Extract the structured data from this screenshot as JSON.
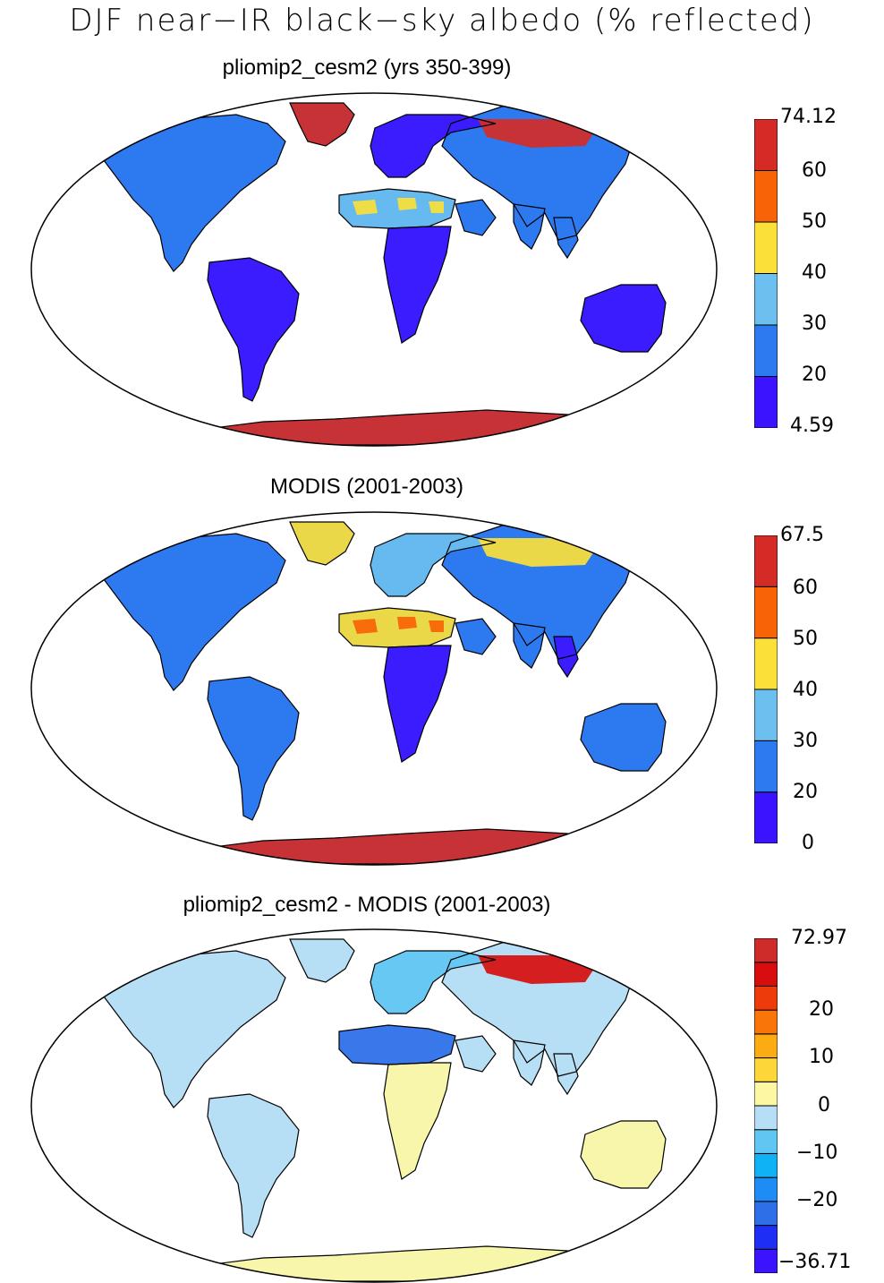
{
  "title": "DJF near−IR black−sky albedo (% reflected)",
  "panels": [
    {
      "title": "pliomip2_cesm2 (yrs 350-399)",
      "colorbar": {
        "colors": [
          "#3c13ff",
          "#2d7af0",
          "#6dbff0",
          "#fbe03a",
          "#f96308",
          "#d52b27"
        ],
        "tick_labels": [
          "4.59",
          "20",
          "30",
          "40",
          "50",
          "60",
          "74.12"
        ]
      },
      "base_color": "#2d7af0",
      "accents": [
        {
          "color": "#3c13ff",
          "region": "south-america"
        },
        {
          "color": "#3c13ff",
          "region": "africa-south"
        },
        {
          "color": "#3c13ff",
          "region": "australia"
        },
        {
          "color": "#3c13ff",
          "region": "europe"
        },
        {
          "color": "#6dbff0",
          "region": "sahara"
        },
        {
          "color": "#fbe03a",
          "region": "sahara-spots"
        },
        {
          "color": "#d52b27",
          "region": "siberia"
        },
        {
          "color": "#d52b27",
          "region": "greenland"
        },
        {
          "color": "#d52b27",
          "region": "antarctica"
        }
      ]
    },
    {
      "title": "MODIS (2001-2003)",
      "colorbar": {
        "colors": [
          "#3c13ff",
          "#2d7af0",
          "#6dbff0",
          "#fbe03a",
          "#f96308",
          "#d52b27"
        ],
        "tick_labels": [
          "0",
          "20",
          "30",
          "40",
          "50",
          "60",
          "67.5"
        ]
      },
      "base_color": "#2d7af0",
      "accents": [
        {
          "color": "#6dbff0",
          "region": "europe"
        },
        {
          "color": "#fbe03a",
          "region": "sahara"
        },
        {
          "color": "#f96308",
          "region": "sahara-spots"
        },
        {
          "color": "#fbe03a",
          "region": "siberia"
        },
        {
          "color": "#3c13ff",
          "region": "africa-south"
        },
        {
          "color": "#3c13ff",
          "region": "se-asia"
        },
        {
          "color": "#fbe03a",
          "region": "greenland"
        },
        {
          "color": "#d52b27",
          "region": "antarctica"
        }
      ]
    },
    {
      "title": "pliomip2_cesm2 - MODIS (2001-2003)",
      "colorbar": {
        "colors": [
          "#3c13ff",
          "#1f2ef5",
          "#2e6fe8",
          "#1e8cf5",
          "#10b2f6",
          "#61c6f2",
          "#b6def4",
          "#fdf7a3",
          "#fdd73a",
          "#fbac12",
          "#f97508",
          "#ee3b0b",
          "#d80d0d",
          "#ce2b2b"
        ],
        "tick_labels": [
          "−36.71",
          "−20",
          "−10",
          "0",
          "10",
          "20",
          "72.97"
        ]
      },
      "base_color": "#b6def4",
      "accents": [
        {
          "color": "#61c6f2",
          "region": "europe"
        },
        {
          "color": "#2e6fe8",
          "region": "sahara"
        },
        {
          "color": "#fdf7a3",
          "region": "africa-south"
        },
        {
          "color": "#fdf7a3",
          "region": "australia"
        },
        {
          "color": "#d80d0d",
          "region": "siberia"
        },
        {
          "color": "#fdf7a3",
          "region": "antarctica"
        }
      ]
    }
  ]
}
